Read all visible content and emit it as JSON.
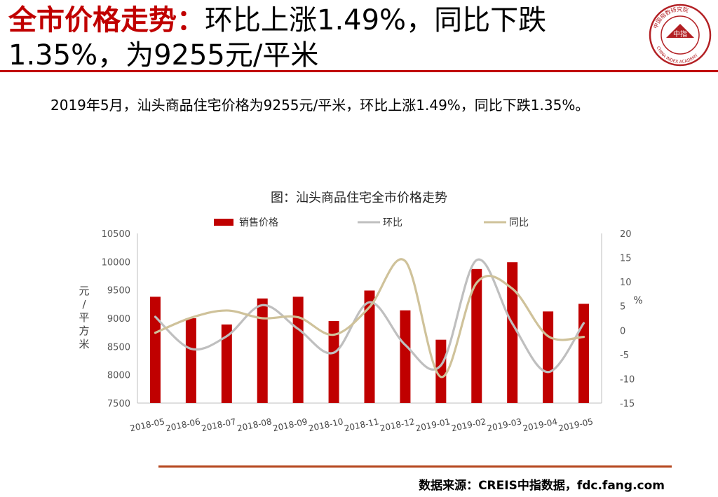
{
  "header": {
    "title_accent": "全市价格走势：",
    "title_rest": "环比上涨1.49%，同比下跌1.35%，为9255元/平米",
    "logo_center_text": "中指",
    "logo_ring_text": "中国指数研究院",
    "logo_ring_text_en": "CHINA INDEX ACADEMY"
  },
  "intro": "2019年5月，汕头商品住宅价格为9255元/平米，环比上涨1.49%，同比下跌1.35%。",
  "chart_data": {
    "type": "bar",
    "title": "图：汕头商品住宅全市价格走势",
    "categories": [
      "2018-05",
      "2018-06",
      "2018-07",
      "2018-08",
      "2018-09",
      "2018-10",
      "2018-11",
      "2018-12",
      "2019-01",
      "2019-02",
      "2019-03",
      "2019-04",
      "2019-05"
    ],
    "series": [
      {
        "name": "销售价格",
        "type": "bar",
        "axis": "left",
        "color": "#c00000",
        "values": [
          9380,
          9000,
          8890,
          9350,
          9380,
          8950,
          9490,
          9140,
          8620,
          9870,
          9990,
          9120,
          9255
        ]
      },
      {
        "name": "环比",
        "type": "line",
        "axis": "right",
        "color": "#bfbfbf",
        "values": [
          2.8,
          -3.8,
          -1.2,
          5.2,
          0.3,
          -4.6,
          5.8,
          -3.0,
          -7.2,
          14.5,
          1.4,
          -8.6,
          1.49
        ]
      },
      {
        "name": "同比",
        "type": "line",
        "axis": "right",
        "color": "#cfc29a",
        "values": [
          -0.5,
          2.6,
          4.1,
          2.5,
          2.7,
          -0.9,
          4.8,
          14.3,
          -9.6,
          9.8,
          8.6,
          -1.2,
          -1.35
        ]
      }
    ],
    "ylabel": "元/平方米",
    "y2label": "%",
    "ylim": [
      7500,
      10500
    ],
    "y2lim": [
      -15,
      20
    ],
    "yticks": [
      "7500",
      "8000",
      "8500",
      "9000",
      "9500",
      "10000",
      "10500"
    ],
    "y2ticks": [
      "-15",
      "-10",
      "-5",
      "0",
      "5",
      "10",
      "15",
      "20"
    ],
    "legend_position": "top",
    "grid": false
  },
  "source": "数据来源：CREIS中指数据，fdc.fang.com"
}
